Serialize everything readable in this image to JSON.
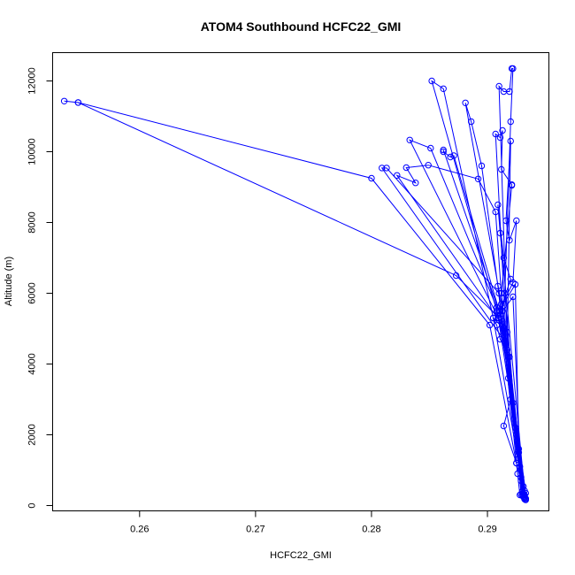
{
  "chart_data": {
    "type": "line",
    "title": "ATOM4 Southbound HCFC22_GMI",
    "xlabel": "HCFC22_GMI",
    "ylabel": "Altitude (m)",
    "xlim": [
      0.2525,
      0.2953
    ],
    "ylim": [
      -150,
      12800
    ],
    "xticks": [
      0.26,
      0.27,
      0.28,
      0.29
    ],
    "xtick_labels": [
      "0.26",
      "0.27",
      "0.28",
      "0.29"
    ],
    "yticks": [
      0,
      2000,
      4000,
      6000,
      8000,
      10000,
      12000
    ],
    "ytick_labels": [
      "0",
      "2000",
      "4000",
      "6000",
      "8000",
      "10000",
      "12000"
    ],
    "grid": false,
    "color": "#0000ff",
    "series": [
      {
        "points": [
          {
            "x": 0.2535,
            "y": 11430
          },
          {
            "x": 0.2547,
            "y": 11390
          },
          {
            "x": 0.28,
            "y": 9250
          },
          {
            "x": 0.2902,
            "y": 5100
          },
          {
            "x": 0.2925,
            "y": 1200
          },
          {
            "x": 0.2932,
            "y": 300
          }
        ]
      },
      {
        "points": [
          {
            "x": 0.2932,
            "y": 180
          },
          {
            "x": 0.2922,
            "y": 2900
          },
          {
            "x": 0.291,
            "y": 5300
          },
          {
            "x": 0.2873,
            "y": 6500
          },
          {
            "x": 0.2547,
            "y": 11390
          }
        ]
      },
      {
        "points": [
          {
            "x": 0.2931,
            "y": 250
          },
          {
            "x": 0.2918,
            "y": 4200
          },
          {
            "x": 0.2908,
            "y": 5500
          },
          {
            "x": 0.2852,
            "y": 12000
          },
          {
            "x": 0.2862,
            "y": 11780
          },
          {
            "x": 0.2905,
            "y": 5300
          },
          {
            "x": 0.2929,
            "y": 800
          }
        ]
      },
      {
        "points": [
          {
            "x": 0.2933,
            "y": 350
          },
          {
            "x": 0.2916,
            "y": 4600
          },
          {
            "x": 0.2809,
            "y": 9540
          },
          {
            "x": 0.2813,
            "y": 9540
          },
          {
            "x": 0.291,
            "y": 6000
          },
          {
            "x": 0.2926,
            "y": 900
          }
        ]
      },
      {
        "points": [
          {
            "x": 0.293,
            "y": 400
          },
          {
            "x": 0.2914,
            "y": 5000
          },
          {
            "x": 0.2833,
            "y": 10330
          },
          {
            "x": 0.2851,
            "y": 10100
          },
          {
            "x": 0.2908,
            "y": 5600
          },
          {
            "x": 0.2927,
            "y": 1500
          }
        ]
      },
      {
        "points": [
          {
            "x": 0.2932,
            "y": 220
          },
          {
            "x": 0.2913,
            "y": 5200
          },
          {
            "x": 0.2862,
            "y": 10050
          },
          {
            "x": 0.2862,
            "y": 10000
          },
          {
            "x": 0.2868,
            "y": 9850
          },
          {
            "x": 0.2871,
            "y": 9890
          },
          {
            "x": 0.2911,
            "y": 5400
          },
          {
            "x": 0.2928,
            "y": 1100
          }
        ]
      },
      {
        "points": [
          {
            "x": 0.2931,
            "y": 300
          },
          {
            "x": 0.2912,
            "y": 5700
          },
          {
            "x": 0.2881,
            "y": 11380
          },
          {
            "x": 0.2886,
            "y": 10850
          },
          {
            "x": 0.2895,
            "y": 9600
          },
          {
            "x": 0.2909,
            "y": 6200
          },
          {
            "x": 0.2926,
            "y": 1300
          }
        ]
      },
      {
        "points": [
          {
            "x": 0.2933,
            "y": 200
          },
          {
            "x": 0.2915,
            "y": 5000
          },
          {
            "x": 0.2822,
            "y": 9330
          },
          {
            "x": 0.2838,
            "y": 9120
          },
          {
            "x": 0.283,
            "y": 9550
          },
          {
            "x": 0.2849,
            "y": 9620
          },
          {
            "x": 0.2892,
            "y": 9230
          },
          {
            "x": 0.2907,
            "y": 8300
          },
          {
            "x": 0.2913,
            "y": 5500
          }
        ]
      },
      {
        "points": [
          {
            "x": 0.2932,
            "y": 260
          },
          {
            "x": 0.2918,
            "y": 3600
          },
          {
            "x": 0.291,
            "y": 11850
          },
          {
            "x": 0.2914,
            "y": 11700
          },
          {
            "x": 0.2919,
            "y": 11700
          },
          {
            "x": 0.2921,
            "y": 12350
          },
          {
            "x": 0.2922,
            "y": 12350
          },
          {
            "x": 0.292,
            "y": 10850
          },
          {
            "x": 0.2915,
            "y": 6000
          },
          {
            "x": 0.2925,
            "y": 2000
          }
        ]
      },
      {
        "points": [
          {
            "x": 0.2931,
            "y": 340
          },
          {
            "x": 0.2916,
            "y": 4800
          },
          {
            "x": 0.2907,
            "y": 10500
          },
          {
            "x": 0.2911,
            "y": 10400
          },
          {
            "x": 0.2913,
            "y": 10600
          },
          {
            "x": 0.2912,
            "y": 9500
          },
          {
            "x": 0.2921,
            "y": 9070
          },
          {
            "x": 0.2921,
            "y": 9050
          },
          {
            "x": 0.2912,
            "y": 6000
          },
          {
            "x": 0.2924,
            "y": 2200
          }
        ]
      },
      {
        "points": [
          {
            "x": 0.2933,
            "y": 160
          },
          {
            "x": 0.2917,
            "y": 4400
          },
          {
            "x": 0.292,
            "y": 10300
          },
          {
            "x": 0.2916,
            "y": 8050
          },
          {
            "x": 0.2919,
            "y": 7500
          },
          {
            "x": 0.2925,
            "y": 8050
          },
          {
            "x": 0.2922,
            "y": 6300
          },
          {
            "x": 0.291,
            "y": 5500
          },
          {
            "x": 0.2924,
            "y": 6250
          },
          {
            "x": 0.2927,
            "y": 1600
          }
        ]
      },
      {
        "points": [
          {
            "x": 0.2932,
            "y": 420
          },
          {
            "x": 0.2911,
            "y": 7700
          },
          {
            "x": 0.2909,
            "y": 8500
          },
          {
            "x": 0.2914,
            "y": 7000
          },
          {
            "x": 0.292,
            "y": 6400
          },
          {
            "x": 0.2909,
            "y": 5300
          },
          {
            "x": 0.2922,
            "y": 5900
          },
          {
            "x": 0.2929,
            "y": 700
          }
        ]
      },
      {
        "points": [
          {
            "x": 0.293,
            "y": 280
          },
          {
            "x": 0.292,
            "y": 3000
          },
          {
            "x": 0.2914,
            "y": 2250
          },
          {
            "x": 0.2925,
            "y": 1200
          },
          {
            "x": 0.2928,
            "y": 300
          },
          {
            "x": 0.2931,
            "y": 540
          },
          {
            "x": 0.2933,
            "y": 190
          }
        ]
      },
      {
        "points": [
          {
            "x": 0.2929,
            "y": 320
          },
          {
            "x": 0.2917,
            "y": 4900
          },
          {
            "x": 0.2905,
            "y": 5300
          },
          {
            "x": 0.2908,
            "y": 5100
          },
          {
            "x": 0.2911,
            "y": 4700
          },
          {
            "x": 0.2919,
            "y": 4200
          },
          {
            "x": 0.2932,
            "y": 230
          }
        ]
      }
    ]
  }
}
